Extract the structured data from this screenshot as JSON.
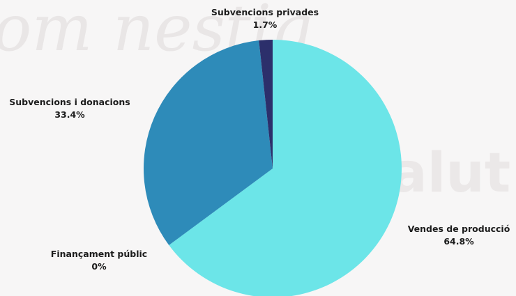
{
  "colors": {
    "background": "#f7f6f6",
    "watermark": "#e9e6e6"
  },
  "chart_data": {
    "type": "pie",
    "title": "",
    "start_angle_deg": 0,
    "direction": "clockwise",
    "slices": [
      {
        "label": "Vendes de producció",
        "value": 64.8,
        "display": "64.8%",
        "color": "#6ce5e8"
      },
      {
        "label": "Finançament públic",
        "value": 0,
        "display": "0%",
        "color": "#2e8bb9"
      },
      {
        "label": "Subvencions i donacions",
        "value": 33.4,
        "display": "33.4%",
        "color": "#2e8bb9"
      },
      {
        "label": "Subvencions privades",
        "value": 1.7,
        "display": "1.7%",
        "color": "#2c2f6b"
      }
    ]
  }
}
